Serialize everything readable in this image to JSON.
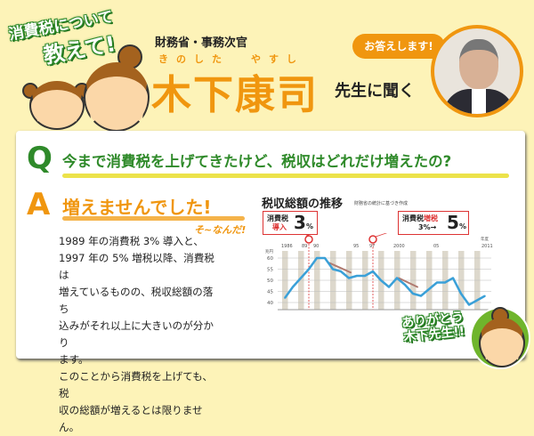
{
  "header": {
    "badge_line1": "消費税について",
    "badge_line2": "教えて!",
    "affiliation": "財務省・事務次官",
    "ruby_family": "きのした",
    "ruby_given": "やすし",
    "name": "木下康司",
    "suffix": "先生に聞く",
    "speech_bubble": "お答えします!"
  },
  "qa": {
    "q_mark": "Q",
    "question": "今まで消費税を上げてきたけど、税収はどれだけ増えたの?",
    "a_mark": "A",
    "answer": "増えませんでした!",
    "reaction": "そ~なんだ!",
    "body_lines": [
      "1989 年の消費税 3% 導入と、",
      "1997 年の 5% 増税以降、消費税は",
      "増えているものの、税収総額の落ち",
      "込みがそれ以上に大きいのが分かり",
      "ます。",
      "このことから消費税を上げても、税",
      "収の総額が増えるとは限りません。"
    ]
  },
  "thanks": {
    "line1": "ありがとう",
    "line2": "木下先生!!"
  },
  "colors": {
    "orange": "#f0960f",
    "green": "#2f8a2a",
    "line": "#3aa0d8",
    "red": "#d33"
  },
  "chart_data": {
    "type": "line",
    "title": "税収総額の推移",
    "source": "財務省の統計に基づき作成",
    "ylabel": "兆円",
    "xlabel": "年度",
    "ylim": [
      38,
      62
    ],
    "yticks": [
      60,
      55,
      50,
      45,
      40
    ],
    "xtick_labels": [
      "1986",
      "89",
      "90",
      "95",
      "97",
      "2000",
      "05",
      "2011"
    ],
    "x": [
      1986,
      1987,
      1988,
      1989,
      1990,
      1991,
      1992,
      1993,
      1994,
      1995,
      1996,
      1997,
      1998,
      1999,
      2000,
      2001,
      2002,
      2003,
      2004,
      2005,
      2006,
      2007,
      2008,
      2009,
      2010,
      2011
    ],
    "values": [
      42,
      47,
      51,
      55,
      60,
      60,
      55,
      54,
      51,
      52,
      52,
      54,
      50,
      47,
      51,
      48,
      44,
      43,
      46,
      49,
      49,
      51,
      44,
      39,
      41,
      43
    ],
    "annotations": [
      {
        "year": 1989,
        "label_line1": "消費税",
        "label_line2": "導入",
        "big": "3",
        "unit": "%"
      },
      {
        "year": 1997,
        "label_line1": "消費税",
        "label_red": "増税",
        "label_line2": "3%→",
        "big": "5",
        "unit": "%"
      }
    ]
  }
}
